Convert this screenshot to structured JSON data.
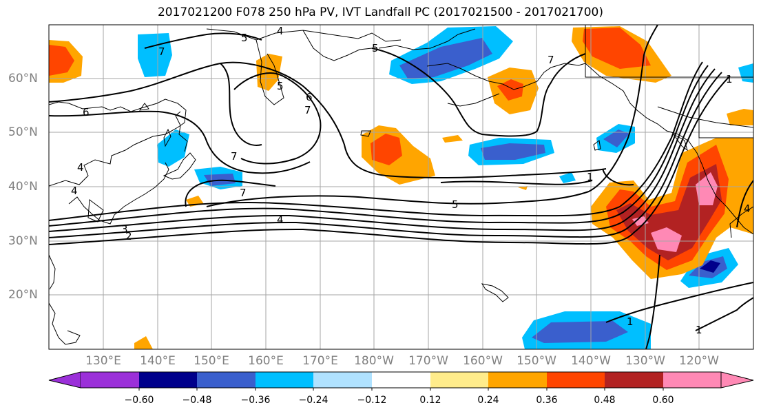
{
  "title": "2017021200 F078 250 hPa PV, IVT Landfall PC (2017021500 - 2017021700)",
  "lat_labels": [
    "60°N",
    "50°N",
    "40°N",
    "30°N",
    "20°N"
  ],
  "lon_labels": [
    "130°E",
    "140°E",
    "150°E",
    "160°E",
    "170°E",
    "180°W",
    "170°W",
    "160°W",
    "150°W",
    "140°W",
    "130°W",
    "120°W"
  ],
  "contour_labels": [
    "7",
    "5",
    "4",
    "6",
    "5",
    "7",
    "7",
    "6",
    "5",
    "4",
    "4",
    "3",
    "2",
    "7",
    "7",
    "5",
    "4",
    "1",
    "1",
    "1",
    "4",
    "1"
  ],
  "colorbar": {
    "colors": [
      "#9b30d9",
      "#00008b",
      "#3a5fcd",
      "#00bfff",
      "#b0e2ff",
      "#ffffff",
      "#ffec8b",
      "#ffa500",
      "#ff4500",
      "#b22222",
      "#ff89b5"
    ],
    "tick_labels": [
      "−0.60",
      "−0.48",
      "−0.36",
      "−0.24",
      "−0.12",
      "0.12",
      "0.24",
      "0.36",
      "0.48",
      "0.60"
    ]
  }
}
